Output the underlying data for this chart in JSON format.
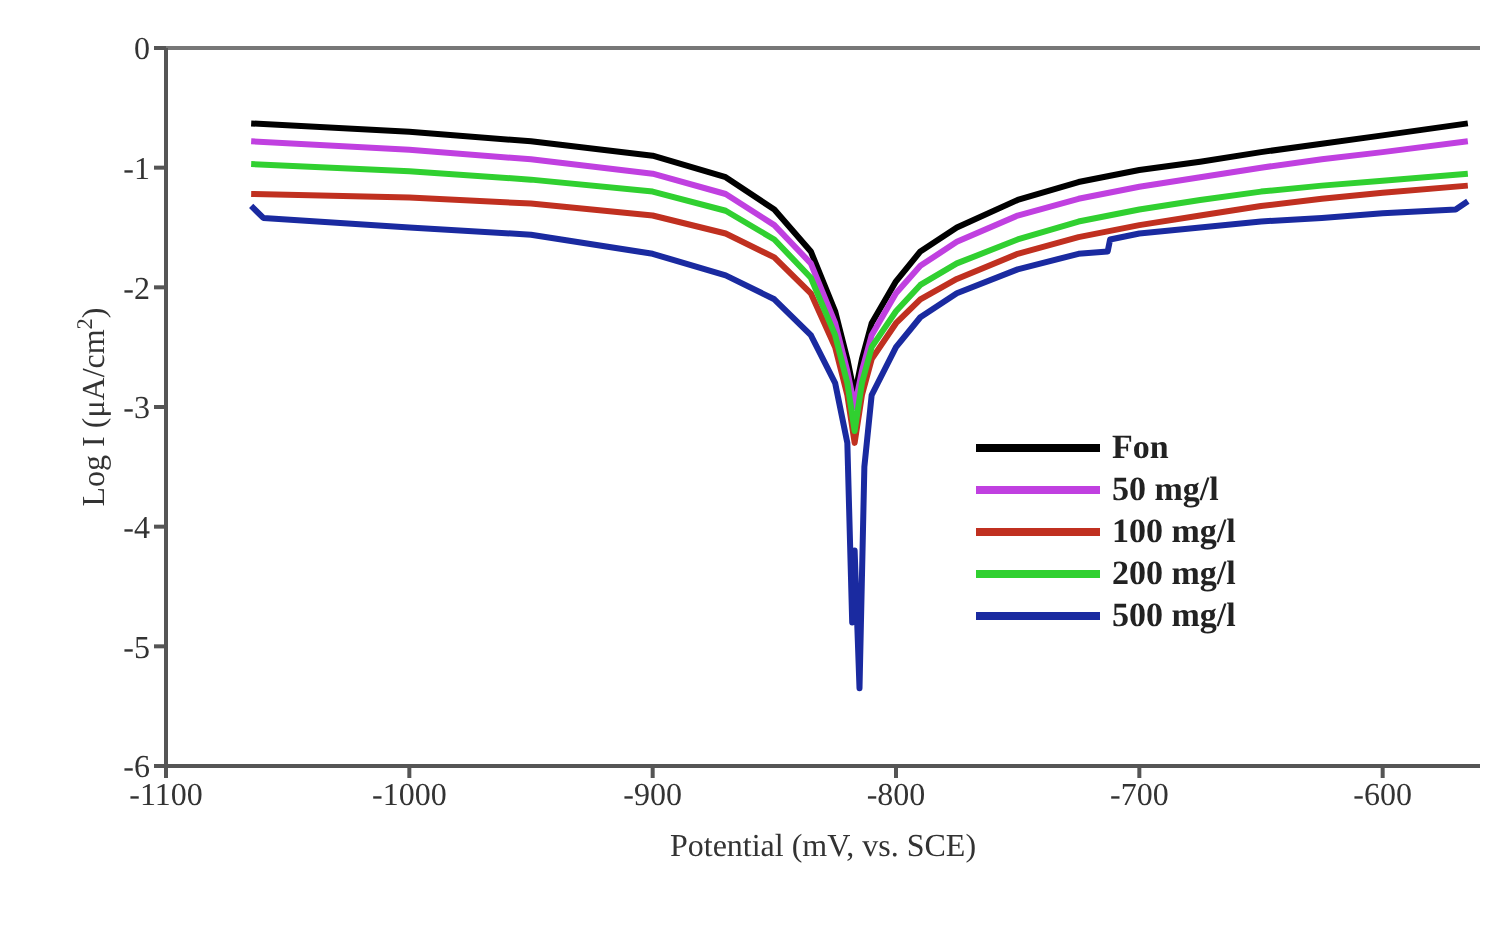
{
  "chart_data": {
    "type": "line",
    "xlabel": "Potential (mV,  vs. SCE)",
    "ylabel": "Log I (μA/cm$^{2}$)",
    "xlim": [
      -1100,
      -560
    ],
    "xticks": [
      -1100,
      -1000,
      -900,
      -800,
      -700,
      -600
    ],
    "ylim": [
      -6,
      0
    ],
    "yticks": [
      0,
      -1,
      -2,
      -3,
      -4,
      -5,
      -6
    ],
    "grid": false,
    "legend": "right",
    "marker": "none",
    "line_style": "solid",
    "series": [
      {
        "name": "Fon",
        "color": "#000000",
        "x": [
          -1065,
          -1000,
          -950,
          -900,
          -870,
          -850,
          -835,
          -825,
          -820,
          -817,
          -814,
          -810,
          -800,
          -790,
          -775,
          -750,
          -725,
          -700,
          -675,
          -650,
          -625,
          -600,
          -565
        ],
        "values": [
          -0.63,
          -0.7,
          -0.78,
          -0.9,
          -1.08,
          -1.35,
          -1.7,
          -2.2,
          -2.6,
          -2.9,
          -2.6,
          -2.3,
          -1.95,
          -1.7,
          -1.5,
          -1.27,
          -1.12,
          -1.02,
          -0.95,
          -0.87,
          -0.8,
          -0.73,
          -0.63
        ]
      },
      {
        "name": "50 mg/l",
        "color": "#c040e0",
        "x": [
          -1065,
          -1000,
          -950,
          -900,
          -870,
          -850,
          -835,
          -825,
          -820,
          -817,
          -814,
          -810,
          -800,
          -790,
          -775,
          -750,
          -725,
          -700,
          -675,
          -650,
          -625,
          -600,
          -565
        ],
        "values": [
          -0.78,
          -0.85,
          -0.93,
          -1.05,
          -1.22,
          -1.48,
          -1.8,
          -2.3,
          -2.7,
          -3,
          -2.7,
          -2.4,
          -2.05,
          -1.82,
          -1.62,
          -1.4,
          -1.26,
          -1.16,
          -1.08,
          -1,
          -0.93,
          -0.87,
          -0.78
        ]
      },
      {
        "name": "100 mg/l",
        "color": "#c03020",
        "x": [
          -1065,
          -1000,
          -950,
          -900,
          -870,
          -850,
          -835,
          -825,
          -820,
          -817,
          -814,
          -810,
          -800,
          -790,
          -775,
          -750,
          -725,
          -700,
          -675,
          -650,
          -625,
          -600,
          -565
        ],
        "values": [
          -1.22,
          -1.25,
          -1.3,
          -1.4,
          -1.55,
          -1.75,
          -2.05,
          -2.5,
          -2.9,
          -3.3,
          -2.9,
          -2.6,
          -2.3,
          -2.1,
          -1.93,
          -1.72,
          -1.58,
          -1.48,
          -1.4,
          -1.32,
          -1.26,
          -1.21,
          -1.15
        ]
      },
      {
        "name": "200 mg/l",
        "color": "#30d030",
        "x": [
          -1065,
          -1000,
          -950,
          -900,
          -870,
          -850,
          -835,
          -825,
          -820,
          -817,
          -814,
          -810,
          -800,
          -790,
          -775,
          -750,
          -725,
          -700,
          -675,
          -650,
          -625,
          -600,
          -565
        ],
        "values": [
          -0.97,
          -1.03,
          -1.1,
          -1.2,
          -1.36,
          -1.6,
          -1.92,
          -2.4,
          -2.8,
          -3.2,
          -2.8,
          -2.5,
          -2.2,
          -1.98,
          -1.8,
          -1.6,
          -1.45,
          -1.35,
          -1.27,
          -1.2,
          -1.15,
          -1.11,
          -1.05
        ]
      },
      {
        "name": "500 mg/l",
        "color": "#1a2aa0",
        "x": [
          -1065,
          -1060,
          -1000,
          -950,
          -900,
          -870,
          -850,
          -835,
          -825,
          -820,
          -818,
          -817,
          -815,
          -813,
          -810,
          -800,
          -790,
          -775,
          -750,
          -725,
          -713,
          -712,
          -700,
          -675,
          -650,
          -625,
          -600,
          -570,
          -565
        ],
        "values": [
          -1.32,
          -1.42,
          -1.5,
          -1.56,
          -1.72,
          -1.9,
          -2.1,
          -2.4,
          -2.8,
          -3.3,
          -4.8,
          -4.2,
          -5.35,
          -3.5,
          -2.9,
          -2.5,
          -2.25,
          -2.05,
          -1.85,
          -1.72,
          -1.7,
          -1.6,
          -1.55,
          -1.5,
          -1.45,
          -1.42,
          -1.38,
          -1.35,
          -1.28
        ]
      }
    ]
  }
}
